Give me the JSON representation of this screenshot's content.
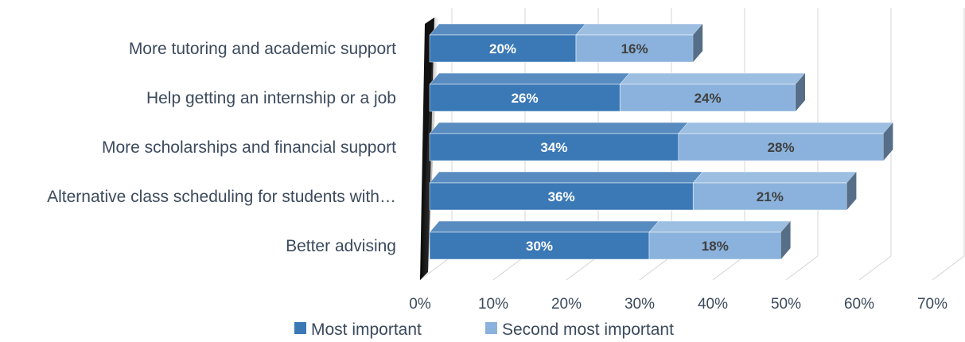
{
  "chart_data": {
    "type": "bar",
    "orientation": "horizontal",
    "stacked": true,
    "three_d": true,
    "categories": [
      "More tutoring and academic support",
      "Help getting an internship or a job",
      "More scholarships and financial support",
      "Alternative class scheduling for students with…",
      "Better advising"
    ],
    "series": [
      {
        "name": "Most important",
        "values": [
          20,
          26,
          34,
          36,
          30
        ],
        "labels": [
          "20%",
          "26%",
          "34%",
          "36%",
          "30%"
        ],
        "color": "#3a78b6"
      },
      {
        "name": "Second most important",
        "values": [
          16,
          24,
          28,
          21,
          18
        ],
        "labels": [
          "16%",
          "24%",
          "28%",
          "21%",
          "18%"
        ],
        "color": "#8ab2dc"
      }
    ],
    "x_ticks": [
      "0%",
      "10%",
      "20%",
      "30%",
      "40%",
      "50%",
      "60%",
      "70%"
    ],
    "xlim": [
      0,
      70
    ],
    "xlabel": "",
    "ylabel": "",
    "title": "",
    "grid": true,
    "legend_position": "bottom"
  }
}
